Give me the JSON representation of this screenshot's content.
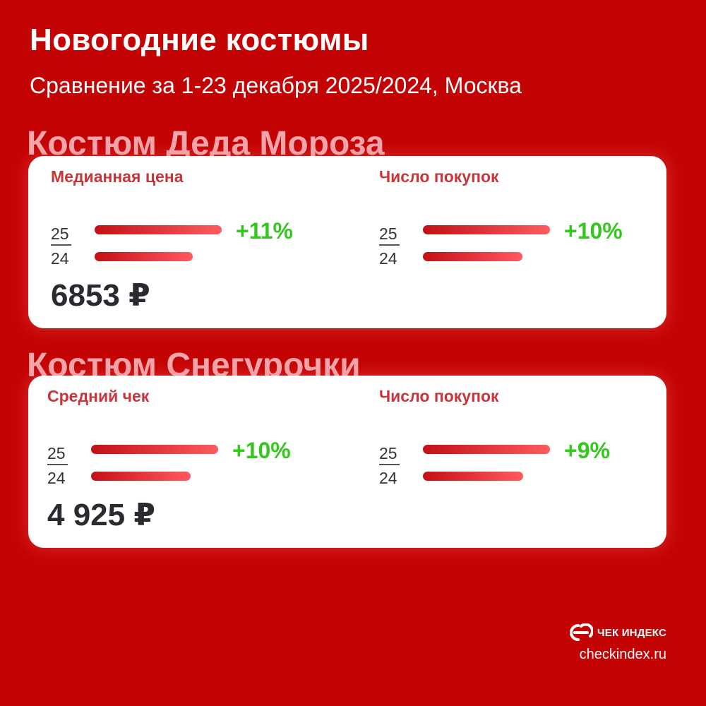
{
  "title": "Новогодние костюмы",
  "subtitle": "Сравнение за 1-23 декабря 2025/2024, Москва",
  "colors": {
    "background": "#c40404",
    "card": "#ffffff",
    "section_title": "#f3a6ac",
    "metric_label": "#c8353a",
    "positive_change": "#33c81c",
    "bar_start": "#c21016",
    "bar_end": "#ff5a5f"
  },
  "brand": {
    "name": "ЧЕК ИНДЕКС",
    "url": "checkindex.ru",
    "logo_icon": "checkindex-logo-icon"
  },
  "chart_data": [
    {
      "type": "bar",
      "section": "Костюм Деда Мороза",
      "title": "Медианная цена",
      "categories": [
        "25",
        "24"
      ],
      "values": [
        1.11,
        1.0
      ],
      "change": "+11%",
      "value_label": "6853 ₽"
    },
    {
      "type": "bar",
      "section": "Костюм Деда Мороза",
      "title": "Число покупок",
      "categories": [
        "25",
        "24"
      ],
      "values": [
        1.1,
        1.0
      ],
      "change": "+10%"
    },
    {
      "type": "bar",
      "section": "Костюм Снегурочки",
      "title": "Средний чек",
      "categories": [
        "25",
        "24"
      ],
      "values": [
        1.1,
        1.0
      ],
      "change": "+10%",
      "value_label": "4 925 ₽"
    },
    {
      "type": "bar",
      "section": "Костюм Снегурочки",
      "title": "Число покупок",
      "categories": [
        "25",
        "24"
      ],
      "values": [
        1.09,
        1.0
      ],
      "change": "+9%"
    }
  ]
}
